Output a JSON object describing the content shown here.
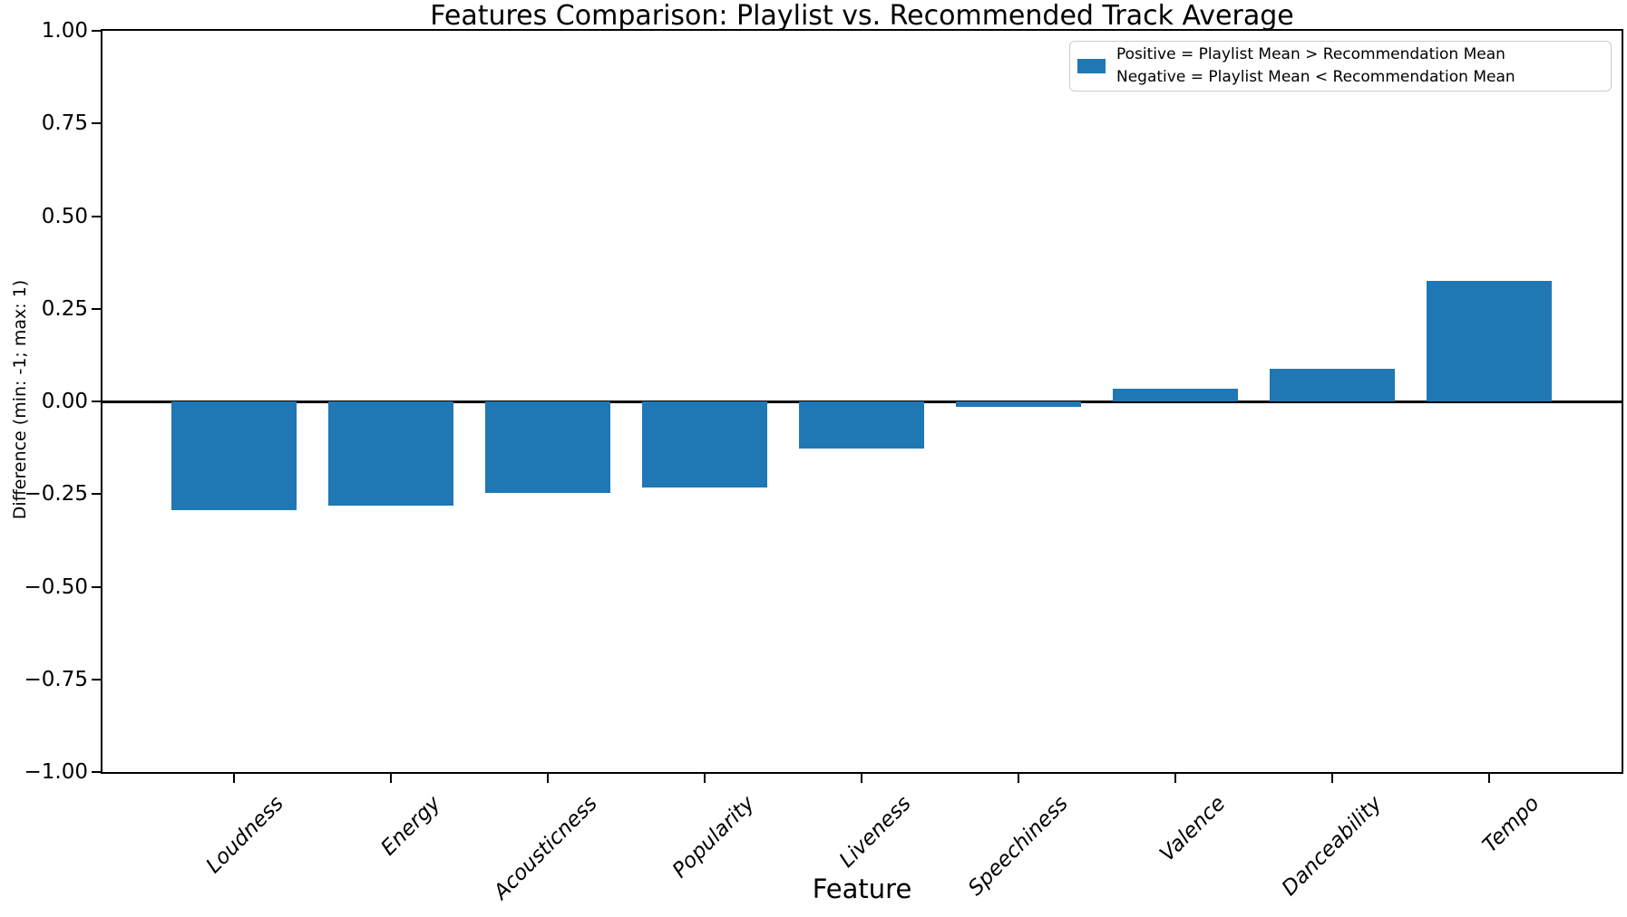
{
  "chart_data": {
    "type": "bar",
    "title": "Features Comparison: Playlist vs. Recommended Track Average",
    "xlabel": "Feature",
    "ylabel": "Difference (min: -1; max: 1)",
    "categories": [
      "Loudness",
      "Energy",
      "Acousticness",
      "Popularity",
      "Liveness",
      "Speechiness",
      "Valence",
      "Danceability",
      "Tempo"
    ],
    "values": [
      -0.293,
      -0.281,
      -0.247,
      -0.232,
      -0.127,
      -0.015,
      0.034,
      0.088,
      0.325
    ],
    "ylim": [
      -1,
      1
    ],
    "ytick_values": [
      1.0,
      0.75,
      0.5,
      0.25,
      0.0,
      -0.25,
      -0.5,
      -0.75,
      -1.0
    ],
    "ytick_labels": [
      "1.00",
      "0.75",
      "0.50",
      "0.25",
      "0.00",
      "−0.25",
      "−0.50",
      "−0.75",
      "−1.00"
    ],
    "bar_color": "#1f77b4",
    "axis_color": "#000000",
    "zero_line": true,
    "grid": false,
    "legend_position": "upper right",
    "legend_lines": [
      "Positive = Playlist Mean > Recommendation Mean",
      "Negative = Playlist Mean < Recommendation Mean"
    ]
  }
}
